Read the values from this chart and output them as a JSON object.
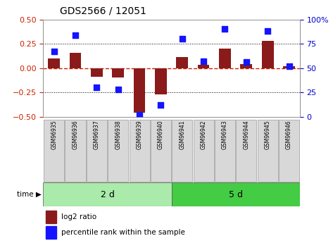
{
  "title": "GDS2566 / 12051",
  "samples": [
    "GSM96935",
    "GSM96936",
    "GSM96937",
    "GSM96938",
    "GSM96939",
    "GSM96940",
    "GSM96941",
    "GSM96942",
    "GSM96943",
    "GSM96944",
    "GSM96945",
    "GSM96946"
  ],
  "log2_ratio": [
    0.1,
    0.16,
    -0.09,
    -0.1,
    -0.46,
    -0.27,
    0.11,
    0.03,
    0.2,
    0.04,
    0.28,
    0.02
  ],
  "percentile_rank": [
    67,
    84,
    30,
    28,
    2,
    12,
    80,
    57,
    90,
    56,
    88,
    52
  ],
  "bar_color": "#8B1A1A",
  "dot_color": "#1414FF",
  "left_ylim": [
    -0.5,
    0.5
  ],
  "right_ylim": [
    0,
    100
  ],
  "left_yticks": [
    -0.5,
    -0.25,
    0,
    0.25,
    0.5
  ],
  "right_yticks": [
    0,
    25,
    50,
    75,
    100
  ],
  "hline_y": [
    0.25,
    -0.25
  ],
  "group1_label": "2 d",
  "group2_label": "5 d",
  "group1_indices": [
    0,
    1,
    2,
    3,
    4,
    5
  ],
  "group2_indices": [
    6,
    7,
    8,
    9,
    10,
    11
  ],
  "time_label": "time",
  "legend_bar_label": "log2 ratio",
  "legend_dot_label": "percentile rank within the sample",
  "bg_color_group1": "#AAEAAA",
  "bg_color_group2": "#44CC44",
  "sample_box_color": "#D8D8D8",
  "tick_label_color_left": "#CC2200",
  "tick_label_color_right": "#0000CC",
  "zero_line_color": "#CC2200",
  "dotted_line_color": "#000000",
  "bar_width": 0.55,
  "dot_size": 40,
  "right_ytick_labels": [
    "0",
    "25",
    "50",
    "75",
    "100%"
  ]
}
